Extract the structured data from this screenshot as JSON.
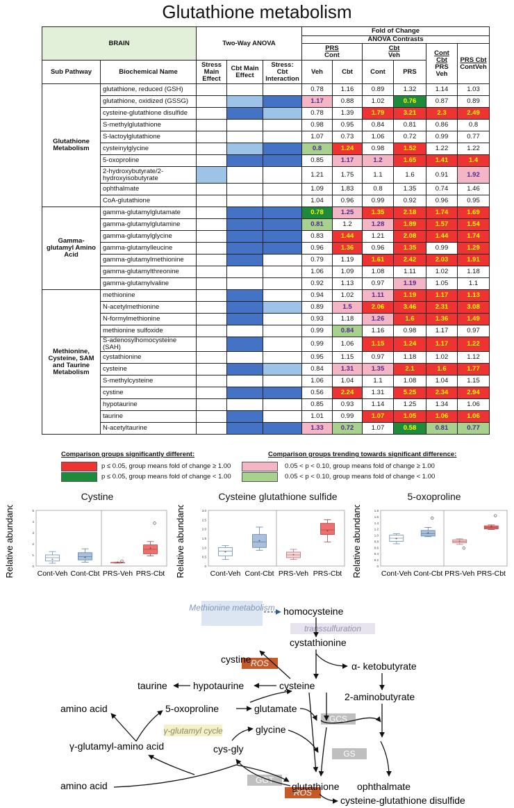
{
  "title": "Glutathione metabolism",
  "header": {
    "brain": "BRAIN",
    "two_way": "Two-Way ANOVA",
    "fold_title": "Fold of Change",
    "contrasts": "ANOVA Contrasts",
    "sub_pathway": "Sub Pathway",
    "biochem": "Biochemical Name",
    "stress": "Stress Main Effect",
    "cbt_main": "Cbt Main Effect",
    "interaction": "Stress: Cbt Interaction",
    "prs": "PRS",
    "cont": "Cont",
    "cbt": "Cbt",
    "veh": "Veh",
    "cont_cbt": "Cont Cbt",
    "prs_veh": "PRS Veh",
    "prs_cbt": "PRS Cbt",
    "contveh": "ContVeh",
    "col_veh": "Veh",
    "col_cbt": "Cbt",
    "col_cont": "Cont",
    "col_prs": "PRS"
  },
  "colors": {
    "dark_blue": "#4472c4",
    "light_blue": "#9dc3e6",
    "red": "#ee3333",
    "pink": "#f4b5c4",
    "dark_green": "#1e8a3c",
    "light_green": "#a9d18e",
    "yellow_text": "#ffff00",
    "purple_text": "#4b2a8c"
  },
  "groups": [
    {
      "name": "Glutathione Metabolism",
      "rows": [
        {
          "name": "glutathione, reduced (GSH)",
          "anova": [
            "",
            "",
            ""
          ],
          "vals": [
            "0.78",
            "1.16",
            "0.89",
            "1.32",
            "1.14",
            "1.03"
          ],
          "c": [
            "",
            "",
            "",
            "",
            "",
            ""
          ]
        },
        {
          "name": "glutathione, oxidized (GSSG)",
          "anova": [
            "",
            "lb",
            "db"
          ],
          "vals": [
            "1.17",
            "0.88",
            "1.02",
            "0.76",
            "0.87",
            "0.89"
          ],
          "c": [
            "p",
            "",
            "",
            "g",
            "",
            ""
          ]
        },
        {
          "name": "cysteine-glutathione disulfide",
          "anova": [
            "",
            "db",
            "lb"
          ],
          "vals": [
            "0.78",
            "1.39",
            "1.79",
            "3.21",
            "2.3",
            "2.49"
          ],
          "c": [
            "",
            "",
            "r",
            "r",
            "r",
            "r"
          ]
        },
        {
          "name": "S-methylglutathione",
          "anova": [
            "",
            "",
            ""
          ],
          "vals": [
            "0.98",
            "0.95",
            "0.84",
            "0.81",
            "0.86",
            "0.8"
          ],
          "c": [
            "",
            "",
            "",
            "",
            "",
            ""
          ]
        },
        {
          "name": "S-lactoylglutathione",
          "anova": [
            "",
            "",
            ""
          ],
          "vals": [
            "1.07",
            "0.73",
            "1.06",
            "0.72",
            "0.99",
            "0.77"
          ],
          "c": [
            "",
            "",
            "",
            "",
            "",
            ""
          ]
        },
        {
          "name": "cysteinylglycine",
          "anova": [
            "",
            "lb",
            "db"
          ],
          "vals": [
            "0.8",
            "1.24",
            "0.98",
            "1.52",
            "1.22",
            "1.22"
          ],
          "c": [
            "lg",
            "r",
            "",
            "r",
            "",
            ""
          ]
        },
        {
          "name": "5-oxoproline",
          "anova": [
            "",
            "db",
            "db"
          ],
          "vals": [
            "0.85",
            "1.17",
            "1.2",
            "1.65",
            "1.41",
            "1.4"
          ],
          "c": [
            "",
            "p",
            "p",
            "r",
            "r",
            "r"
          ]
        },
        {
          "name": "2-hydroxybutyrate/2-hydroxyisobutyrate",
          "anova": [
            "lb",
            "",
            ""
          ],
          "vals": [
            "1.21",
            "1.75",
            "1.1",
            "1.6",
            "0.91",
            "1.92"
          ],
          "c": [
            "",
            "",
            "",
            "",
            "",
            "p"
          ]
        },
        {
          "name": "ophthalmate",
          "anova": [
            "",
            "",
            ""
          ],
          "vals": [
            "1.09",
            "1.83",
            "0.8",
            "1.35",
            "0.74",
            "1.46"
          ],
          "c": [
            "",
            "",
            "",
            "",
            "",
            ""
          ]
        },
        {
          "name": "CoA-glutathione",
          "anova": [
            "",
            "",
            ""
          ],
          "vals": [
            "1.04",
            "0.96",
            "0.99",
            "0.92",
            "0.96",
            "0.95"
          ],
          "c": [
            "",
            "",
            "",
            "",
            "",
            ""
          ]
        }
      ]
    },
    {
      "name": "Gamma-glutamyl Amino Acid",
      "rows": [
        {
          "name": "gamma-glutamylglutamate",
          "anova": [
            "",
            "db",
            "db"
          ],
          "vals": [
            "0.78",
            "1.25",
            "1.35",
            "2.18",
            "1.74",
            "1.69"
          ],
          "c": [
            "g",
            "p",
            "r",
            "r",
            "r",
            "r"
          ]
        },
        {
          "name": "gamma-glutamylglutamine",
          "anova": [
            "",
            "db",
            "db"
          ],
          "vals": [
            "0.81",
            "1.2",
            "1.28",
            "1.89",
            "1.57",
            "1.54"
          ],
          "c": [
            "lg",
            "",
            "p",
            "r",
            "r",
            "r"
          ]
        },
        {
          "name": "gamma-glutamylglycine",
          "anova": [
            "",
            "db",
            "db"
          ],
          "vals": [
            "0.83",
            "1.44",
            "1.21",
            "2.08",
            "1.44",
            "1.74"
          ],
          "c": [
            "",
            "r",
            "",
            "r",
            "r",
            "r"
          ]
        },
        {
          "name": "gamma-glutamylleucine",
          "anova": [
            "",
            "db",
            "db"
          ],
          "vals": [
            "0.96",
            "1.36",
            "0.96",
            "1.35",
            "0.99",
            "1.29"
          ],
          "c": [
            "",
            "r",
            "",
            "r",
            "",
            "r"
          ]
        },
        {
          "name": "gamma-glutamylmethionine",
          "anova": [
            "",
            "db",
            ""
          ],
          "vals": [
            "0.79",
            "1.19",
            "1.61",
            "2.42",
            "2.03",
            "1.91"
          ],
          "c": [
            "",
            "",
            "r",
            "r",
            "r",
            "r"
          ]
        },
        {
          "name": "gamma-glutamylthreonine",
          "anova": [
            "",
            "",
            ""
          ],
          "vals": [
            "1.06",
            "1.09",
            "1.08",
            "1.11",
            "1.02",
            "1.18"
          ],
          "c": [
            "",
            "",
            "",
            "",
            "",
            ""
          ]
        },
        {
          "name": "gamma-glutamylvaline",
          "anova": [
            "",
            "",
            ""
          ],
          "vals": [
            "0.92",
            "1.13",
            "0.97",
            "1.19",
            "1.05",
            "1.1"
          ],
          "c": [
            "",
            "",
            "",
            "p",
            "",
            ""
          ]
        }
      ]
    },
    {
      "name": "Methionine, Cysteine, SAM and Taurine Metabolism",
      "rows": [
        {
          "name": "methionine",
          "anova": [
            "",
            "db",
            ""
          ],
          "vals": [
            "0.94",
            "1.02",
            "1.11",
            "1.19",
            "1.17",
            "1.13"
          ],
          "c": [
            "",
            "",
            "p",
            "r",
            "r",
            "r"
          ]
        },
        {
          "name": "N-acetylmethionine",
          "anova": [
            "",
            "db",
            "lb"
          ],
          "vals": [
            "0.89",
            "1.5",
            "2.06",
            "3.46",
            "2.31",
            "3.08"
          ],
          "c": [
            "",
            "p",
            "r",
            "r",
            "r",
            "r"
          ]
        },
        {
          "name": "N-formylmethionine",
          "anova": [
            "",
            "db",
            ""
          ],
          "vals": [
            "0.93",
            "1.18",
            "1.26",
            "1.6",
            "1.36",
            "1.49"
          ],
          "c": [
            "",
            "",
            "p",
            "r",
            "r",
            "r"
          ]
        },
        {
          "name": "methionine sulfoxide",
          "anova": [
            "",
            "",
            ""
          ],
          "vals": [
            "0.99",
            "0.84",
            "1.16",
            "0.98",
            "1.17",
            "0.97"
          ],
          "c": [
            "",
            "lg",
            "",
            "",
            "",
            ""
          ]
        },
        {
          "name": "S-adenosylhomocysteine (SAH)",
          "anova": [
            "",
            "db",
            ""
          ],
          "vals": [
            "0.99",
            "1.06",
            "1.15",
            "1.24",
            "1.17",
            "1.22"
          ],
          "c": [
            "",
            "",
            "r",
            "r",
            "r",
            "r"
          ]
        },
        {
          "name": "cystathionine",
          "anova": [
            "",
            "",
            ""
          ],
          "vals": [
            "0.95",
            "1.15",
            "0.97",
            "1.18",
            "1.02",
            "1.12"
          ],
          "c": [
            "",
            "",
            "",
            "",
            "",
            ""
          ]
        },
        {
          "name": "cysteine",
          "anova": [
            "",
            "db",
            "lb"
          ],
          "vals": [
            "0.84",
            "1.31",
            "1.35",
            "2.1",
            "1.6",
            "1.77"
          ],
          "c": [
            "",
            "p",
            "p",
            "r",
            "r",
            "r"
          ]
        },
        {
          "name": "S-methylcysteine",
          "anova": [
            "",
            "",
            ""
          ],
          "vals": [
            "1.06",
            "1.04",
            "1.1",
            "1.08",
            "1.04",
            "1.15"
          ],
          "c": [
            "",
            "",
            "",
            "",
            "",
            ""
          ]
        },
        {
          "name": "cystine",
          "anova": [
            "",
            "db",
            "db"
          ],
          "vals": [
            "0.56",
            "2.24",
            "1.31",
            "5.25",
            "2.34",
            "2.94"
          ],
          "c": [
            "",
            "r",
            "",
            "r",
            "r",
            "r"
          ]
        },
        {
          "name": "hypotaurine",
          "anova": [
            "",
            "",
            ""
          ],
          "vals": [
            "0.85",
            "0.93",
            "1.14",
            "1.25",
            "1.34",
            "1.06"
          ],
          "c": [
            "",
            "",
            "",
            "",
            "",
            ""
          ]
        },
        {
          "name": "taurine",
          "anova": [
            "",
            "db",
            ""
          ],
          "vals": [
            "1.01",
            "0.99",
            "1.07",
            "1.05",
            "1.06",
            "1.06"
          ],
          "c": [
            "",
            "",
            "r",
            "r",
            "r",
            "r"
          ]
        },
        {
          "name": "N-acetyltaurine",
          "anova": [
            "",
            "db",
            "db"
          ],
          "vals": [
            "1.33",
            "0.72",
            "1.07",
            "0.58",
            "0.81",
            "0.77"
          ],
          "c": [
            "p",
            "lg",
            "",
            "g",
            "lg",
            "lg"
          ]
        }
      ]
    }
  ],
  "legend": {
    "sig_head": "Comparison groups significantly different:",
    "trend_head": "Comparison groups trending towards significant difference:",
    "sig_up": "p ≤ 0.05, group means fold of change ≥ 1.00",
    "sig_down": "p ≤ 0.05, group means fold of change < 1.00",
    "trend_up": "0.05 < p < 0.10, group means fold of change ≥ 1.00",
    "trend_down": "0.05 < p < 0.10, group means fold of change < 1.00"
  },
  "chart_data": [
    {
      "type": "box",
      "title": "Cystine",
      "ylabel": "Relative abundance",
      "categories": [
        "Cont-Veh",
        "Cont-Cbt",
        "PRS-Veh",
        "PRS-Cbt"
      ],
      "yticks": [
        "0",
        "1",
        "2",
        "3",
        "4",
        "5"
      ],
      "ylim": [
        0,
        5
      ],
      "boxes": [
        {
          "q1": 0.45,
          "median": 0.75,
          "q3": 1.0,
          "whisker_low": 0.25,
          "whisker_high": 1.3,
          "mean": 0.6,
          "outliers": []
        },
        {
          "q1": 0.55,
          "median": 0.85,
          "q3": 1.2,
          "whisker_low": 0.35,
          "whisker_high": 1.55,
          "mean": 0.75,
          "outliers": []
        },
        {
          "q1": 0.28,
          "median": 0.31,
          "q3": 0.33,
          "whisker_low": 0.25,
          "whisker_high": 0.36,
          "mean": 0.3,
          "outliers": [
            0.45
          ]
        },
        {
          "q1": 1.1,
          "median": 1.5,
          "q3": 1.9,
          "whisker_low": 0.9,
          "whisker_high": 2.2,
          "mean": 1.6,
          "outliers": [
            3.85
          ]
        }
      ]
    },
    {
      "type": "box",
      "title": "Cysteine glutathione sulfide",
      "ylabel": "Relative abundance",
      "categories": [
        "Cont-Veh",
        "Cont-Cbt",
        "PRS-Veh",
        "PRS-Cbt"
      ],
      "yticks": [
        "0",
        "0.5",
        "1.0",
        "1.5",
        "2.0",
        "2.5",
        "3.0"
      ],
      "ylim": [
        0,
        3
      ],
      "boxes": [
        {
          "q1": 0.55,
          "median": 0.8,
          "q3": 1.0,
          "whisker_low": 0.35,
          "whisker_high": 1.1,
          "mean": 0.75,
          "outliers": []
        },
        {
          "q1": 1.0,
          "median": 1.3,
          "q3": 1.7,
          "whisker_low": 0.85,
          "whisker_high": 2.1,
          "mean": 1.35,
          "outliers": []
        },
        {
          "q1": 0.45,
          "median": 0.6,
          "q3": 0.75,
          "whisker_low": 0.35,
          "whisker_high": 0.9,
          "mean": 0.6,
          "outliers": []
        },
        {
          "q1": 1.7,
          "median": 1.95,
          "q3": 2.3,
          "whisker_low": 1.3,
          "whisker_high": 2.5,
          "mean": 1.9,
          "outliers": []
        }
      ]
    },
    {
      "type": "box",
      "title": "5-oxoproline",
      "ylabel": "Relative abundance",
      "categories": [
        "Cont-Veh",
        "Cont-Cbt",
        "PRS-Veh",
        "PRS-Cbt"
      ],
      "yticks": [
        "0",
        "0.2",
        "0.4",
        "0.6",
        "0.8",
        "1.0",
        "1.2",
        "1.4",
        "1.6",
        "1.8"
      ],
      "ylim": [
        0,
        1.8
      ],
      "boxes": [
        {
          "q1": 0.8,
          "median": 0.9,
          "q3": 1.0,
          "whisker_low": 0.72,
          "whisker_high": 1.05,
          "mean": 0.88,
          "outliers": []
        },
        {
          "q1": 0.97,
          "median": 1.05,
          "q3": 1.15,
          "whisker_low": 0.95,
          "whisker_high": 1.25,
          "mean": 1.07,
          "outliers": [
            1.55
          ]
        },
        {
          "q1": 0.75,
          "median": 0.8,
          "q3": 0.85,
          "whisker_low": 0.7,
          "whisker_high": 0.88,
          "mean": 0.8,
          "outliers": [
            0.58
          ]
        },
        {
          "q1": 1.2,
          "median": 1.25,
          "q3": 1.3,
          "whisker_low": 1.18,
          "whisker_high": 1.33,
          "mean": 1.26,
          "outliers": [
            1.63
          ]
        }
      ]
    }
  ],
  "pathway": {
    "methionine_metabolism": "Methionine metabolism",
    "homocysteine": "homocysteine",
    "transsulfuration": "transsulfuration",
    "cystathionine": "cystathionine",
    "cystine": "cystine",
    "ros1": "ROS",
    "ketobutyrate": "α- ketobutyrate",
    "taurine": "taurine",
    "hypotaurine": "hypotaurine",
    "cysteine": "cysteine",
    "aminobutyrate": "2-aminobutyrate",
    "amino_acid_top": "amino acid",
    "oxoproline": "5-oxoproline",
    "glutamate": "glutamate",
    "gcs": "GCS",
    "glutamyl_cycle": "γ-glutamyl cycle",
    "glycine": "glycine",
    "glutamyl_amino_acid": "γ-glutamyl-amino acid",
    "cys_gly": "cys-gly",
    "gs": "GS",
    "ggt": "GGT",
    "amino_acid_bottom": "amino acid",
    "glutathione": "glutathione",
    "ophthalmate": "ophthalmate",
    "ros2": "ROS",
    "cys_glut_disulfide": "cysteine-glutathione disulfide"
  }
}
